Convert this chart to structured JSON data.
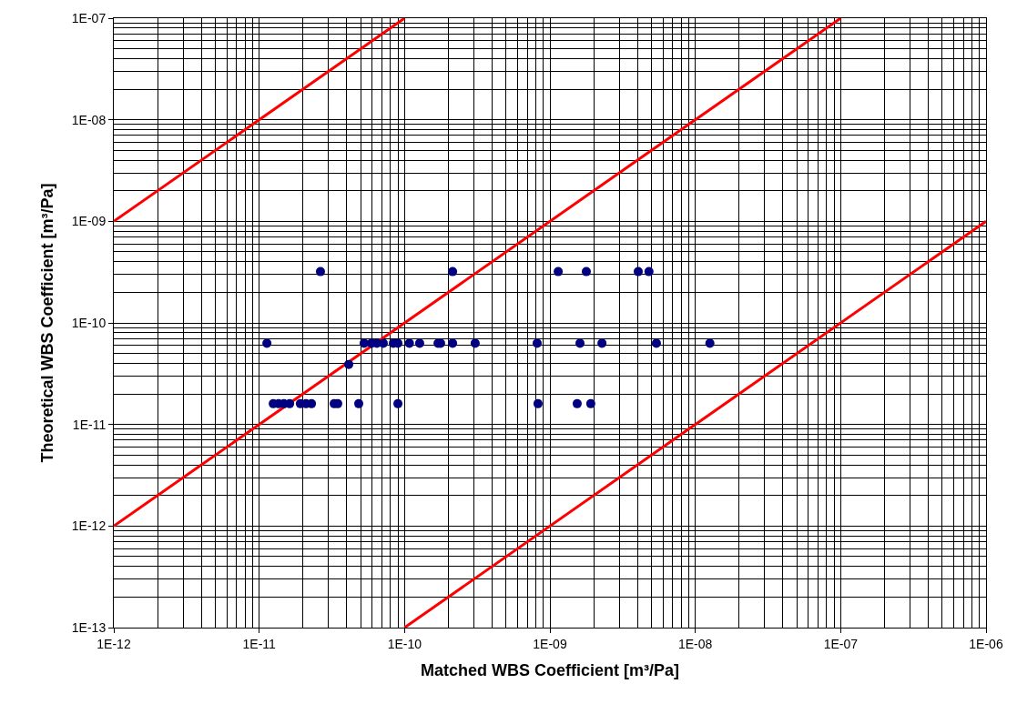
{
  "chart_data": {
    "type": "scatter",
    "xlabel": "Matched WBS Coefficient [m³/Pa]",
    "ylabel": "Theoretical WBS Coefficient [m³/Pa]",
    "log": "xy",
    "grid": true,
    "marker": "circle",
    "xlim": [
      1e-12,
      1e-06
    ],
    "ylim": [
      1e-13,
      1e-07
    ],
    "xticks": [
      {
        "value": 1e-12,
        "label": "1E-12"
      },
      {
        "value": 1e-11,
        "label": "1E-11"
      },
      {
        "value": 1e-10,
        "label": "1E-10"
      },
      {
        "value": 1e-09,
        "label": "1E-09"
      },
      {
        "value": 1e-08,
        "label": "1E-08"
      },
      {
        "value": 1e-07,
        "label": "1E-07"
      },
      {
        "value": 1e-06,
        "label": "1E-06"
      }
    ],
    "yticks": [
      {
        "value": 1e-13,
        "label": "1E-13"
      },
      {
        "value": 1e-12,
        "label": "1E-12"
      },
      {
        "value": 1e-11,
        "label": "1E-11"
      },
      {
        "value": 1e-10,
        "label": "1E-10"
      },
      {
        "value": 1e-09,
        "label": "1E-09"
      },
      {
        "value": 1e-08,
        "label": "1E-08"
      },
      {
        "value": 1e-07,
        "label": "1E-07"
      }
    ],
    "series": [
      {
        "color": "#000080",
        "x": [
          2.64e-11,
          2.14e-10,
          1.14e-09,
          1.78e-09,
          4.05e-09,
          4.8e-09,
          1.13e-11,
          5.27e-11,
          5.92e-11,
          6.45e-11,
          7.14e-11,
          8.37e-11,
          9e-11,
          1.08e-10,
          1.27e-10,
          1.7e-10,
          1.77e-10,
          2.14e-10,
          3.06e-10,
          8.17e-10,
          1.61e-09,
          2.28e-09,
          5.4e-09,
          1.26e-08,
          1.25e-11,
          1.36e-11,
          1.48e-11,
          1.62e-11,
          1.92e-11,
          2.1e-11,
          2.29e-11,
          3.28e-11,
          3.47e-11,
          4.84e-11,
          9e-11,
          8.28e-10,
          1.54e-09,
          1.91e-09,
          4.13e-11
        ],
        "values": [
          3.2e-10,
          3.2e-10,
          3.2e-10,
          3.2e-10,
          3.2e-10,
          3.2e-10,
          6.3e-11,
          6.3e-11,
          6.3e-11,
          6.3e-11,
          6.3e-11,
          6.3e-11,
          6.3e-11,
          6.3e-11,
          6.3e-11,
          6.3e-11,
          6.3e-11,
          6.3e-11,
          6.3e-11,
          6.3e-11,
          6.3e-11,
          6.3e-11,
          6.3e-11,
          6.3e-11,
          1.6e-11,
          1.6e-11,
          1.6e-11,
          1.6e-11,
          1.6e-11,
          1.6e-11,
          1.6e-11,
          1.6e-11,
          1.6e-11,
          1.6e-11,
          1.6e-11,
          1.6e-11,
          1.6e-11,
          1.6e-11,
          3.9e-11
        ]
      },
      {
        "type": "line",
        "color": "#ff0000",
        "marker": "none",
        "x": [
          1e-12,
          1e-10
        ],
        "values": [
          1e-09,
          1e-07
        ]
      },
      {
        "type": "line",
        "color": "#ff0000",
        "marker": "none",
        "x": [
          1e-12,
          1e-07
        ],
        "values": [
          1e-12,
          1e-07
        ]
      },
      {
        "type": "line",
        "color": "#ff0000",
        "marker": "none",
        "x": [
          1e-10,
          1e-06
        ],
        "values": [
          1e-13,
          1e-09
        ]
      }
    ]
  }
}
